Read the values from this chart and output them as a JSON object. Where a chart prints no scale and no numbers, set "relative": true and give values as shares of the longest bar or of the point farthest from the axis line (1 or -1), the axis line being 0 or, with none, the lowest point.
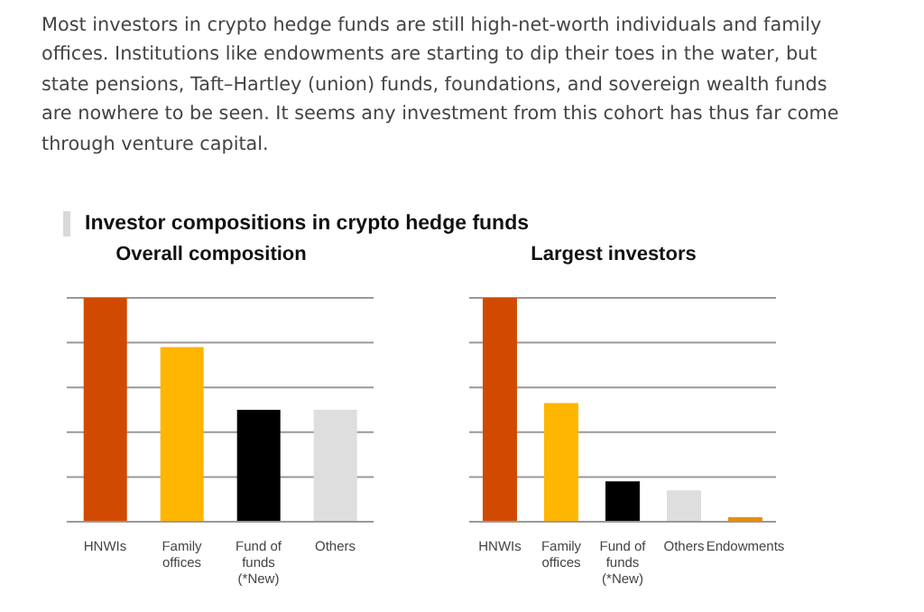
{
  "chart_data": [
    {
      "type": "other",
      "title": "Investor compositions in crypto hedge funds",
      "annotations": [
        "Most investors in crypto hedge funds are still high-net-worth individuals and family offices. Institutions like endowments are starting to dip their toes in the water, but state pensions, Taft–Hartley (union) funds, foundations, and sovereign wealth funds are nowhere to be seen. It seems any investment from this cohort has thus far come through venture capital."
      ]
    },
    {
      "type": "bar",
      "title": "Overall composition",
      "relative": true,
      "grid": "y",
      "categories": [
        "HNWIs",
        "Family offices",
        "Fund of funds (*New)",
        "Others"
      ],
      "values": [
        1,
        0.78,
        0.5,
        0.5
      ],
      "colors": [
        "#d04a02",
        "#ffb600",
        "#000000",
        "#dedede"
      ]
    },
    {
      "type": "bar",
      "title": "Largest investors",
      "relative": true,
      "grid": "y",
      "categories": [
        "HNWIs",
        "Family offices",
        "Fund of funds (*New)",
        "Others",
        "Endowments"
      ],
      "values": [
        1,
        0.53,
        0.18,
        0.14,
        0.02
      ],
      "colors": [
        "#d04a02",
        "#ffb600",
        "#000000",
        "#dedede",
        "#eb8c00"
      ]
    }
  ]
}
